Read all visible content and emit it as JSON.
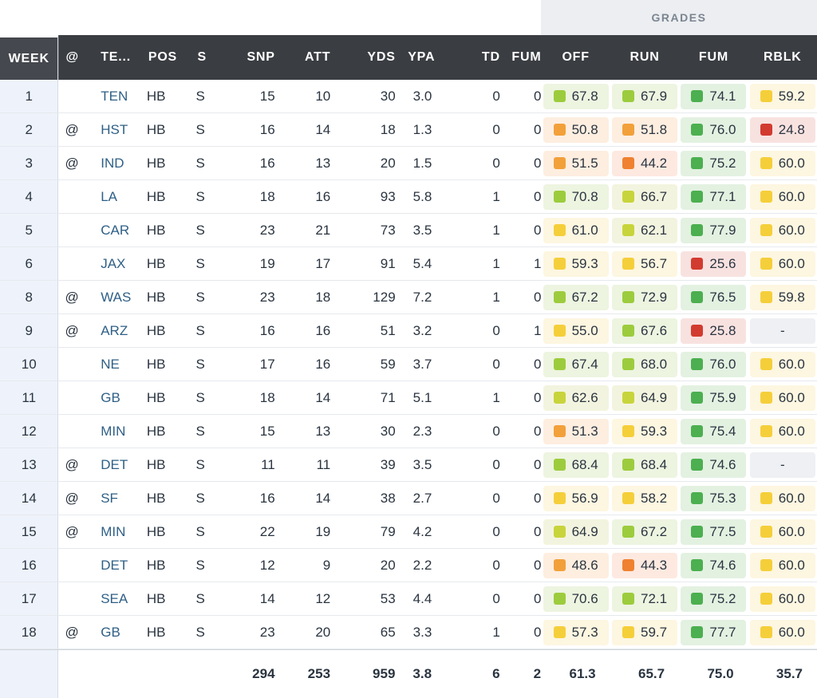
{
  "grades_banner": "GRADES",
  "colors": {
    "dark_green": "#4caf50",
    "light_green": "#9ccc3d",
    "yellow_green": "#c8d43c",
    "yellow": "#f5cf3a",
    "orange": "#f2a03a",
    "dark_orange": "#ef8130",
    "red": "#d23b2f",
    "header_bg": "#3a3d42"
  },
  "headers": {
    "week": "WEEK",
    "at": "@",
    "team": "TE...",
    "pos": "POS",
    "s": "S",
    "snp": "SNP",
    "att": "ATT",
    "yds": "YDS",
    "ypa": "YPA",
    "td": "TD",
    "fum": "FUM",
    "off": "OFF",
    "run": "RUN",
    "fum_grade": "FUM",
    "rblk": "RBLK"
  },
  "rows": [
    {
      "week": "1",
      "at": "",
      "team": "TEN",
      "pos": "HB",
      "s": "S",
      "snp": "15",
      "att": "10",
      "yds": "30",
      "ypa": "3.0",
      "td": "0",
      "fum": "0",
      "off": "67.8",
      "run": "67.9",
      "fumg": "74.1",
      "rblk": "59.2"
    },
    {
      "week": "2",
      "at": "@",
      "team": "HST",
      "pos": "HB",
      "s": "S",
      "snp": "16",
      "att": "14",
      "yds": "18",
      "ypa": "1.3",
      "td": "0",
      "fum": "0",
      "off": "50.8",
      "run": "51.8",
      "fumg": "76.0",
      "rblk": "24.8"
    },
    {
      "week": "3",
      "at": "@",
      "team": "IND",
      "pos": "HB",
      "s": "S",
      "snp": "16",
      "att": "13",
      "yds": "20",
      "ypa": "1.5",
      "td": "0",
      "fum": "0",
      "off": "51.5",
      "run": "44.2",
      "fumg": "75.2",
      "rblk": "60.0"
    },
    {
      "week": "4",
      "at": "",
      "team": "LA",
      "pos": "HB",
      "s": "S",
      "snp": "18",
      "att": "16",
      "yds": "93",
      "ypa": "5.8",
      "td": "1",
      "fum": "0",
      "off": "70.8",
      "run": "66.7",
      "fumg": "77.1",
      "rblk": "60.0"
    },
    {
      "week": "5",
      "at": "",
      "team": "CAR",
      "pos": "HB",
      "s": "S",
      "snp": "23",
      "att": "21",
      "yds": "73",
      "ypa": "3.5",
      "td": "1",
      "fum": "0",
      "off": "61.0",
      "run": "62.1",
      "fumg": "77.9",
      "rblk": "60.0"
    },
    {
      "week": "6",
      "at": "",
      "team": "JAX",
      "pos": "HB",
      "s": "S",
      "snp": "19",
      "att": "17",
      "yds": "91",
      "ypa": "5.4",
      "td": "1",
      "fum": "1",
      "off": "59.3",
      "run": "56.7",
      "fumg": "25.6",
      "rblk": "60.0"
    },
    {
      "week": "8",
      "at": "@",
      "team": "WAS",
      "pos": "HB",
      "s": "S",
      "snp": "23",
      "att": "18",
      "yds": "129",
      "ypa": "7.2",
      "td": "1",
      "fum": "0",
      "off": "67.2",
      "run": "72.9",
      "fumg": "76.5",
      "rblk": "59.8"
    },
    {
      "week": "9",
      "at": "@",
      "team": "ARZ",
      "pos": "HB",
      "s": "S",
      "snp": "16",
      "att": "16",
      "yds": "51",
      "ypa": "3.2",
      "td": "0",
      "fum": "1",
      "off": "55.0",
      "run": "67.6",
      "fumg": "25.8",
      "rblk": "-"
    },
    {
      "week": "10",
      "at": "",
      "team": "NE",
      "pos": "HB",
      "s": "S",
      "snp": "17",
      "att": "16",
      "yds": "59",
      "ypa": "3.7",
      "td": "0",
      "fum": "0",
      "off": "67.4",
      "run": "68.0",
      "fumg": "76.0",
      "rblk": "60.0"
    },
    {
      "week": "11",
      "at": "",
      "team": "GB",
      "pos": "HB",
      "s": "S",
      "snp": "18",
      "att": "14",
      "yds": "71",
      "ypa": "5.1",
      "td": "1",
      "fum": "0",
      "off": "62.6",
      "run": "64.9",
      "fumg": "75.9",
      "rblk": "60.0"
    },
    {
      "week": "12",
      "at": "",
      "team": "MIN",
      "pos": "HB",
      "s": "S",
      "snp": "15",
      "att": "13",
      "yds": "30",
      "ypa": "2.3",
      "td": "0",
      "fum": "0",
      "off": "51.3",
      "run": "59.3",
      "fumg": "75.4",
      "rblk": "60.0"
    },
    {
      "week": "13",
      "at": "@",
      "team": "DET",
      "pos": "HB",
      "s": "S",
      "snp": "11",
      "att": "11",
      "yds": "39",
      "ypa": "3.5",
      "td": "0",
      "fum": "0",
      "off": "68.4",
      "run": "68.4",
      "fumg": "74.6",
      "rblk": "-"
    },
    {
      "week": "14",
      "at": "@",
      "team": "SF",
      "pos": "HB",
      "s": "S",
      "snp": "16",
      "att": "14",
      "yds": "38",
      "ypa": "2.7",
      "td": "0",
      "fum": "0",
      "off": "56.9",
      "run": "58.2",
      "fumg": "75.3",
      "rblk": "60.0"
    },
    {
      "week": "15",
      "at": "@",
      "team": "MIN",
      "pos": "HB",
      "s": "S",
      "snp": "22",
      "att": "19",
      "yds": "79",
      "ypa": "4.2",
      "td": "0",
      "fum": "0",
      "off": "64.9",
      "run": "67.2",
      "fumg": "77.5",
      "rblk": "60.0"
    },
    {
      "week": "16",
      "at": "",
      "team": "DET",
      "pos": "HB",
      "s": "S",
      "snp": "12",
      "att": "9",
      "yds": "20",
      "ypa": "2.2",
      "td": "0",
      "fum": "0",
      "off": "48.6",
      "run": "44.3",
      "fumg": "74.6",
      "rblk": "60.0"
    },
    {
      "week": "17",
      "at": "",
      "team": "SEA",
      "pos": "HB",
      "s": "S",
      "snp": "14",
      "att": "12",
      "yds": "53",
      "ypa": "4.4",
      "td": "0",
      "fum": "0",
      "off": "70.6",
      "run": "72.1",
      "fumg": "75.2",
      "rblk": "60.0"
    },
    {
      "week": "18",
      "at": "@",
      "team": "GB",
      "pos": "HB",
      "s": "S",
      "snp": "23",
      "att": "20",
      "yds": "65",
      "ypa": "3.3",
      "td": "1",
      "fum": "0",
      "off": "57.3",
      "run": "59.7",
      "fumg": "77.7",
      "rblk": "60.0"
    }
  ],
  "totals": {
    "snp": "294",
    "att": "253",
    "yds": "959",
    "ypa": "3.8",
    "td": "6",
    "fum": "2",
    "off": "61.3",
    "run": "65.7",
    "fumg": "75.0",
    "rblk": "35.7"
  }
}
